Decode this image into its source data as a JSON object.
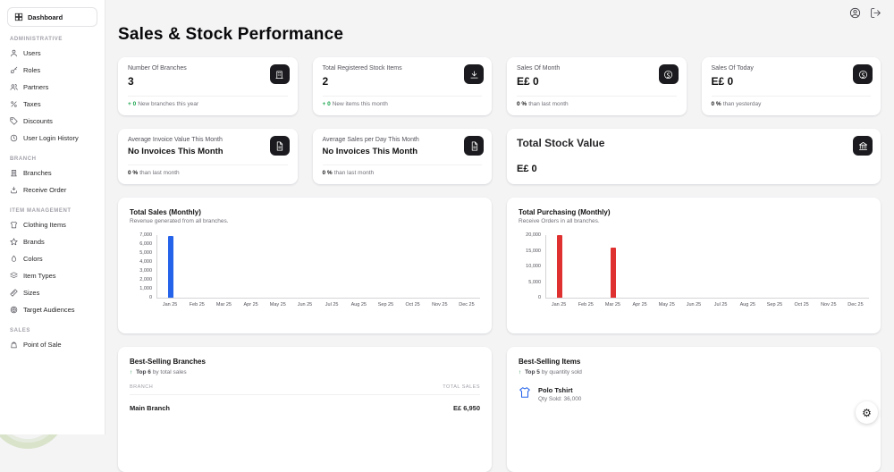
{
  "sidebar": {
    "brand": "Dashboard",
    "sections": [
      {
        "label": "ADMINISTRATIVE",
        "items": [
          "Users",
          "Roles",
          "Partners",
          "Taxes",
          "Discounts",
          "User Login History"
        ]
      },
      {
        "label": "BRANCH",
        "items": [
          "Branches",
          "Receive Order"
        ]
      },
      {
        "label": "ITEM MANAGEMENT",
        "items": [
          "Clothing Items",
          "Brands",
          "Colors",
          "Item Types",
          "Sizes",
          "Target Audiences"
        ]
      },
      {
        "label": "SALES",
        "items": [
          "Point of Sale"
        ]
      }
    ]
  },
  "header": {
    "title": "Sales & Stock Performance"
  },
  "stat_cards": [
    {
      "title": "Number Of Branches",
      "value": "3",
      "delta": "+ 0",
      "delta_text": "New branches this year"
    },
    {
      "title": "Total Registered Stock Items",
      "value": "2",
      "delta": "+ 0",
      "delta_text": "New items this month"
    },
    {
      "title": "Sales Of Month",
      "value": "E£ 0",
      "delta": "0 %",
      "delta_text": "than last month"
    },
    {
      "title": "Sales Of Today",
      "value": "E£ 0",
      "delta": "0 %",
      "delta_text": "than yesterday"
    },
    {
      "title": "Average Invoice Value This Month",
      "value": "No Invoices This Month",
      "delta": "0 %",
      "delta_text": "than last month"
    },
    {
      "title": "Average Sales per Day This Month",
      "value": "No Invoices This Month",
      "delta": "0 %",
      "delta_text": "than last month"
    },
    {
      "title": "Total Stock Value",
      "value": "E£ 0"
    }
  ],
  "chart_data": [
    {
      "type": "bar",
      "title": "Total Sales (Monthly)",
      "subtitle": "Revenue generated from all branches.",
      "categories": [
        "Jan 25",
        "Feb 25",
        "Mar 25",
        "Apr 25",
        "May 25",
        "Jun 25",
        "Jul 25",
        "Aug 25",
        "Sep 25",
        "Oct 25",
        "Nov 25",
        "Dec 25"
      ],
      "values": [
        6950,
        0,
        0,
        0,
        0,
        0,
        0,
        0,
        0,
        0,
        0,
        0
      ],
      "ylim": [
        0,
        7000
      ],
      "yticks": [
        0,
        1000,
        2000,
        3000,
        4000,
        5000,
        6000,
        7000
      ],
      "bar_color": "#2563eb",
      "grid": false,
      "legend": "none"
    },
    {
      "type": "bar",
      "title": "Total Purchasing (Monthly)",
      "subtitle": "Receive Orders in all branches.",
      "categories": [
        "Jan 25",
        "Feb 25",
        "Mar 25",
        "Apr 25",
        "May 25",
        "Jun 25",
        "Jul 25",
        "Aug 25",
        "Sep 25",
        "Oct 25",
        "Nov 25",
        "Dec 25"
      ],
      "values": [
        20000,
        0,
        16000,
        0,
        0,
        0,
        0,
        0,
        0,
        0,
        0,
        0
      ],
      "ylim": [
        0,
        20000
      ],
      "yticks": [
        0,
        5000,
        10000,
        15000,
        20000
      ],
      "bar_color": "#e03131",
      "grid": false,
      "legend": "none"
    }
  ],
  "best_branches": {
    "title": "Best-Selling Branches",
    "subtitle_arrow": "↑",
    "subtitle_strong": "Top 6",
    "subtitle_rest": "by total sales",
    "columns": [
      "BRANCH",
      "TOTAL SALES"
    ],
    "rows": [
      {
        "branch": "Main Branch",
        "total": "E£ 6,950"
      }
    ]
  },
  "best_items": {
    "title": "Best-Selling Items",
    "subtitle_arrow": "↑",
    "subtitle_strong": "Top 5",
    "subtitle_rest": "by quantity sold",
    "items": [
      {
        "name": "Polo Tshirt",
        "qty": "Qty Sold: 36,000"
      }
    ]
  },
  "fab": {
    "gear_glyph": "⚙"
  }
}
